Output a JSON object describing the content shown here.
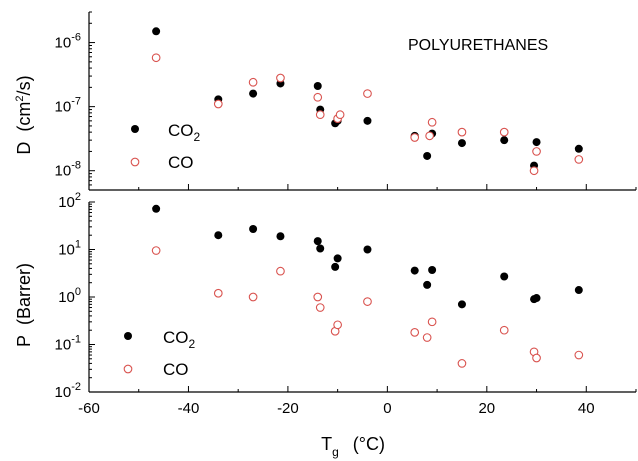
{
  "chart_data": [
    {
      "type": "scatter",
      "panel": "top",
      "annotation": "POLYURETHANES",
      "ylabel": {
        "symbol": "D",
        "unit_prefix": "(cm",
        "unit_sup": "2",
        "unit_suffix": "/s)"
      },
      "yscale": "log",
      "ylim": [
        5e-09,
        3e-06
      ],
      "yticks": [
        {
          "value": 1e-08,
          "base": "10",
          "exp": "-8"
        },
        {
          "value": 1e-07,
          "base": "10",
          "exp": "-7"
        },
        {
          "value": 1e-06,
          "base": "10",
          "exp": "-6"
        }
      ],
      "xlim": [
        -60,
        50
      ],
      "legend_position": "bottom-left",
      "series": [
        {
          "name": "CO",
          "name_sub": "2",
          "marker": "filled-circle",
          "color": "#000000",
          "x": [
            -46.5,
            -34,
            -27,
            -21.5,
            -14,
            -13.5,
            -10.5,
            -10,
            -4,
            5.5,
            8,
            9,
            15,
            23.5,
            29.5,
            30,
            38.5
          ],
          "y": [
            1.5e-06,
            1.3e-07,
            1.6e-07,
            2.3e-07,
            2.1e-07,
            9e-08,
            5.5e-08,
            6e-08,
            6e-08,
            3.5e-08,
            1.7e-08,
            3.8e-08,
            2.7e-08,
            3e-08,
            1.2e-08,
            2.8e-08,
            2.2e-08
          ]
        },
        {
          "name": "CO",
          "name_sub": "",
          "marker": "open-circle",
          "color": "#d9534f",
          "x": [
            -46.5,
            -34,
            -27,
            -21.5,
            -14,
            -13.5,
            -10,
            -9.5,
            -4,
            5.5,
            8.5,
            9,
            15,
            23.5,
            29.5,
            30,
            38.5
          ],
          "y": [
            5.8e-07,
            1.1e-07,
            2.4e-07,
            2.8e-07,
            1.4e-07,
            7.5e-08,
            6.5e-08,
            7.5e-08,
            1.6e-07,
            3.3e-08,
            3.5e-08,
            5.7e-08,
            4e-08,
            4e-08,
            1e-08,
            2e-08,
            1.5e-08
          ]
        }
      ]
    },
    {
      "type": "scatter",
      "panel": "bottom",
      "ylabel": {
        "symbol": "P",
        "unit_prefix": "(Barrer)",
        "unit_sup": "",
        "unit_suffix": ""
      },
      "yscale": "log",
      "ylim": [
        0.01,
        100
      ],
      "yticks": [
        {
          "value": 0.01,
          "base": "10",
          "exp": "-2"
        },
        {
          "value": 0.1,
          "base": "10",
          "exp": "-1"
        },
        {
          "value": 1,
          "base": "10",
          "exp": "0"
        },
        {
          "value": 10,
          "base": "10",
          "exp": "1"
        },
        {
          "value": 100,
          "base": "10",
          "exp": "2"
        }
      ],
      "xlabel": {
        "symbol": "T",
        "symbol_sub": "g",
        "unit": "(°C)"
      },
      "xlim": [
        -60,
        50
      ],
      "xticks": [
        {
          "value": -60,
          "label": "-60"
        },
        {
          "value": -40,
          "label": "-40"
        },
        {
          "value": -20,
          "label": "-20"
        },
        {
          "value": 0,
          "label": "0"
        },
        {
          "value": 20,
          "label": "20"
        },
        {
          "value": 40,
          "label": "40"
        }
      ],
      "legend_position": "bottom-left",
      "series": [
        {
          "name": "CO",
          "name_sub": "2",
          "marker": "filled-circle",
          "color": "#000000",
          "x": [
            -46.5,
            -34,
            -27,
            -21.5,
            -14,
            -13.5,
            -10.5,
            -10,
            -4,
            5.5,
            8,
            9,
            15,
            23.5,
            29.5,
            30,
            38.5
          ],
          "y": [
            72,
            20,
            27,
            19,
            15,
            10.5,
            4.3,
            6.5,
            10,
            3.6,
            1.8,
            3.7,
            0.7,
            2.7,
            0.9,
            0.95,
            1.4
          ]
        },
        {
          "name": "CO",
          "name_sub": "",
          "marker": "open-circle",
          "color": "#d9534f",
          "x": [
            -46.5,
            -34,
            -27,
            -21.5,
            -14,
            -13.5,
            -10.5,
            -10,
            -4,
            5.5,
            8,
            9,
            15,
            23.5,
            29.5,
            30,
            38.5
          ],
          "y": [
            9.5,
            1.2,
            1.0,
            3.5,
            1.0,
            0.6,
            0.19,
            0.26,
            0.8,
            0.18,
            0.14,
            0.3,
            0.04,
            0.2,
            0.07,
            0.052,
            0.06
          ]
        }
      ]
    }
  ]
}
